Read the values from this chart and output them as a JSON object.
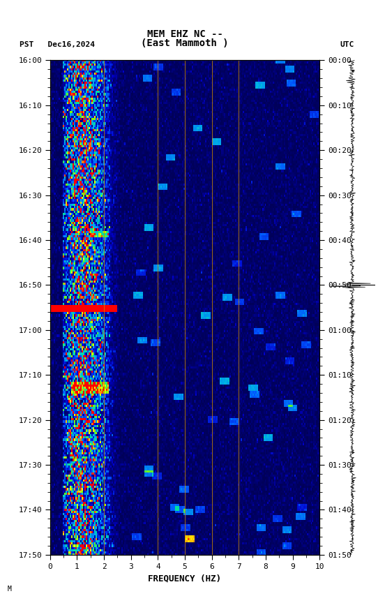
{
  "title_line1": "MEM EHZ NC --",
  "title_line2": "(East Mammoth )",
  "left_label": "PST   Dec16,2024",
  "right_label": "UTC",
  "xlabel": "FREQUENCY (HZ)",
  "ylabel_left": "PST",
  "ylabel_right": "UTC",
  "freq_min": 0,
  "freq_max": 10,
  "time_start_label": "16:00",
  "time_end_label": "17:50",
  "utc_start_label": "00:00",
  "utc_end_label": "01:50",
  "x_ticks": [
    0,
    1,
    2,
    3,
    4,
    5,
    6,
    7,
    8,
    9,
    10
  ],
  "y_ticks_pst": [
    "16:00",
    "16:10",
    "16:20",
    "16:30",
    "16:40",
    "16:50",
    "17:00",
    "17:10",
    "17:20",
    "17:30",
    "17:40",
    "17:50"
  ],
  "y_ticks_utc": [
    "00:00",
    "00:10",
    "00:20",
    "00:30",
    "00:40",
    "00:50",
    "01:00",
    "01:10",
    "01:20",
    "01:30",
    "01:40",
    "01:50"
  ],
  "vertical_lines_freq": [
    2.0,
    4.0,
    5.0,
    6.0,
    7.0
  ],
  "fig_width": 5.52,
  "fig_height": 8.64,
  "dpi": 100,
  "spectrogram_bg_color": "#000080",
  "note_text": "M",
  "seed": 42
}
